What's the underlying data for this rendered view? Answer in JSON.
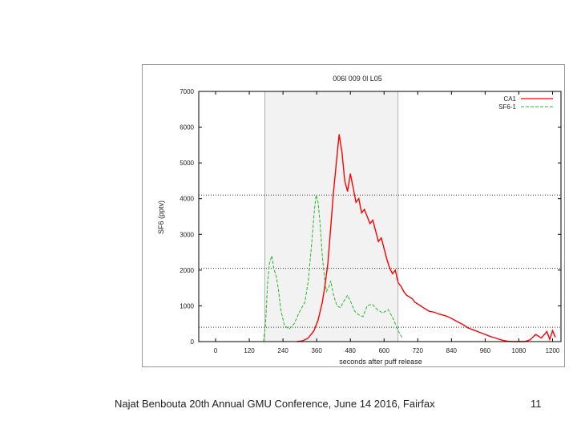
{
  "footer": {
    "text": "Najat Benbouta 20th Annual GMU Conference, June 14 2016, Fairfax",
    "page_number": "11"
  },
  "chart_data": {
    "type": "line",
    "title": "006l 009 0l L05",
    "xlabel": "seconds after puff release",
    "ylabel": "SF6 (pptv)",
    "xlim": [
      -60,
      1230
    ],
    "ylim": [
      0,
      7000
    ],
    "x_ticks": [
      0,
      120,
      240,
      360,
      480,
      600,
      720,
      840,
      960,
      1080,
      1200
    ],
    "y_ticks": [
      0,
      1000,
      2000,
      3000,
      4000,
      5000,
      6000,
      7000
    ],
    "shaded_region": [
      175,
      650
    ],
    "reference_lines": [
      {
        "y": 4100,
        "style": "dotted"
      },
      {
        "y": 2050,
        "style": "dotted"
      },
      {
        "y": 400,
        "style": "dotted"
      }
    ],
    "legend": [
      "CA1",
      "SF6-1"
    ],
    "legend_position": "top-right",
    "colors": {
      "ca1": "#ff0000",
      "sf6": "#22bb22",
      "shade": "#f2f2f2"
    },
    "series": [
      {
        "name": "CA1",
        "color": "#ff0000",
        "x": [
          290,
          310,
          330,
          350,
          365,
          380,
          390,
          400,
          410,
          420,
          430,
          440,
          450,
          460,
          470,
          480,
          490,
          500,
          510,
          520,
          530,
          540,
          550,
          560,
          570,
          580,
          590,
          600,
          610,
          620,
          630,
          640,
          650,
          660,
          670,
          680,
          690,
          700,
          710,
          720,
          730,
          740,
          750,
          760,
          780,
          800,
          820,
          840,
          860,
          880,
          900,
          920,
          940,
          960,
          980,
          1000,
          1020,
          1040,
          1060,
          1080,
          1100,
          1120,
          1140,
          1160,
          1180,
          1190,
          1200,
          1210
        ],
        "y": [
          0,
          20,
          100,
          300,
          600,
          1100,
          1600,
          2200,
          3200,
          4200,
          5000,
          5800,
          5300,
          4500,
          4200,
          4700,
          4300,
          3900,
          4000,
          3600,
          3700,
          3500,
          3300,
          3400,
          3100,
          2800,
          2900,
          2600,
          2300,
          2050,
          1900,
          2000,
          1650,
          1550,
          1400,
          1300,
          1250,
          1200,
          1100,
          1050,
          1000,
          950,
          900,
          850,
          820,
          760,
          720,
          650,
          560,
          480,
          380,
          320,
          260,
          200,
          140,
          90,
          40,
          10,
          0,
          0,
          0,
          50,
          200,
          100,
          280,
          60,
          310,
          120
        ]
      },
      {
        "name": "SF6-1",
        "color": "#22bb22",
        "x": [
          170,
          178,
          185,
          192,
          200,
          207,
          215,
          223,
          232,
          245,
          262,
          280,
          300,
          318,
          330,
          338,
          345,
          352,
          358,
          365,
          372,
          380,
          388,
          395,
          402,
          410,
          420,
          432,
          445,
          458,
          470,
          482,
          495,
          510,
          525,
          540,
          558,
          575,
          595,
          615,
          635,
          650,
          665
        ],
        "y": [
          0,
          500,
          1600,
          2200,
          2400,
          2050,
          1850,
          1500,
          900,
          450,
          350,
          500,
          850,
          1100,
          1700,
          2400,
          3000,
          3700,
          4100,
          3900,
          3300,
          2400,
          1750,
          1400,
          1500,
          1700,
          1300,
          1000,
          950,
          1150,
          1300,
          1100,
          850,
          750,
          700,
          1000,
          1050,
          900,
          800,
          900,
          600,
          300,
          100
        ]
      }
    ]
  }
}
